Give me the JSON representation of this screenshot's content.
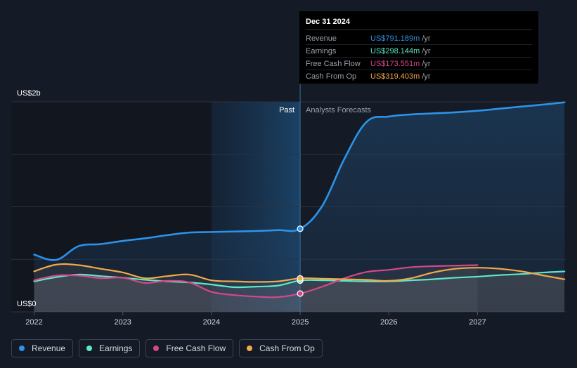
{
  "tooltip": {
    "date": "Dec 31 2024",
    "rows": [
      {
        "label": "Revenue",
        "value": "US$791.189m",
        "unit": "/yr",
        "color": "#2d93e8"
      },
      {
        "label": "Earnings",
        "value": "US$298.144m",
        "unit": "/yr",
        "color": "#5de8c8"
      },
      {
        "label": "Free Cash Flow",
        "value": "US$173.551m",
        "unit": "/yr",
        "color": "#d4488a"
      },
      {
        "label": "Cash From Op",
        "value": "US$319.403m",
        "unit": "/yr",
        "color": "#f2a94a"
      }
    ]
  },
  "legend": [
    {
      "label": "Revenue",
      "color": "#2d93e8"
    },
    {
      "label": "Earnings",
      "color": "#5de8c8"
    },
    {
      "label": "Free Cash Flow",
      "color": "#d4488a"
    },
    {
      "label": "Cash From Op",
      "color": "#f2a94a"
    }
  ],
  "chart_data": {
    "type": "line",
    "y_axis_labels": {
      "top": "US$2b",
      "bottom": "US$0"
    },
    "ylim": [
      0,
      2000
    ],
    "xlim": [
      2022.0,
      2027.98
    ],
    "x_tick_labels": [
      "2022",
      "2023",
      "2024",
      "2025",
      "2026",
      "2027"
    ],
    "x_ticks": [
      2022,
      2023,
      2024,
      2025,
      2026,
      2027
    ],
    "past_label": "Past",
    "forecast_label": "Analysts Forecasts",
    "divider_x": 2025.0,
    "highlight_start_x": 2024.0,
    "grid": true,
    "series": [
      {
        "name": "Revenue",
        "color": "#2d93e8",
        "points": [
          [
            2022.0,
            545
          ],
          [
            2022.25,
            495
          ],
          [
            2022.5,
            625
          ],
          [
            2022.75,
            645
          ],
          [
            2023.0,
            675
          ],
          [
            2023.25,
            700
          ],
          [
            2023.5,
            730
          ],
          [
            2023.75,
            755
          ],
          [
            2024.0,
            760
          ],
          [
            2024.25,
            765
          ],
          [
            2024.5,
            770
          ],
          [
            2024.75,
            778
          ],
          [
            2025.0,
            791
          ],
          [
            2025.25,
            1010
          ],
          [
            2025.5,
            1460
          ],
          [
            2025.75,
            1810
          ],
          [
            2026.0,
            1860
          ],
          [
            2026.25,
            1880
          ],
          [
            2026.5,
            1890
          ],
          [
            2026.75,
            1900
          ],
          [
            2027.0,
            1915
          ],
          [
            2027.25,
            1935
          ],
          [
            2027.5,
            1955
          ],
          [
            2027.75,
            1975
          ],
          [
            2027.98,
            1995
          ]
        ]
      },
      {
        "name": "Earnings",
        "color": "#5de8c8",
        "points": [
          [
            2022.0,
            290
          ],
          [
            2022.25,
            330
          ],
          [
            2022.5,
            355
          ],
          [
            2022.75,
            340
          ],
          [
            2023.0,
            325
          ],
          [
            2023.25,
            305
          ],
          [
            2023.5,
            290
          ],
          [
            2023.75,
            280
          ],
          [
            2024.0,
            260
          ],
          [
            2024.25,
            235
          ],
          [
            2024.5,
            240
          ],
          [
            2024.75,
            250
          ],
          [
            2025.0,
            298
          ],
          [
            2025.25,
            300
          ],
          [
            2025.5,
            295
          ],
          [
            2025.75,
            290
          ],
          [
            2026.0,
            290
          ],
          [
            2026.25,
            300
          ],
          [
            2026.5,
            310
          ],
          [
            2026.75,
            325
          ],
          [
            2027.0,
            335
          ],
          [
            2027.25,
            350
          ],
          [
            2027.5,
            360
          ],
          [
            2027.75,
            375
          ],
          [
            2027.98,
            385
          ]
        ]
      },
      {
        "name": "Free Cash Flow",
        "color": "#d4488a",
        "points": [
          [
            2022.0,
            300
          ],
          [
            2022.25,
            345
          ],
          [
            2022.5,
            345
          ],
          [
            2022.75,
            320
          ],
          [
            2023.0,
            325
          ],
          [
            2023.25,
            275
          ],
          [
            2023.5,
            295
          ],
          [
            2023.75,
            280
          ],
          [
            2024.0,
            190
          ],
          [
            2024.25,
            160
          ],
          [
            2024.5,
            145
          ],
          [
            2024.75,
            140
          ],
          [
            2025.0,
            174
          ],
          [
            2025.25,
            240
          ],
          [
            2025.5,
            320
          ],
          [
            2025.75,
            380
          ],
          [
            2026.0,
            400
          ],
          [
            2026.25,
            425
          ],
          [
            2026.5,
            435
          ],
          [
            2026.75,
            440
          ],
          [
            2027.0,
            445
          ]
        ]
      },
      {
        "name": "Cash From Op",
        "color": "#f2a94a",
        "points": [
          [
            2022.0,
            385
          ],
          [
            2022.25,
            450
          ],
          [
            2022.5,
            445
          ],
          [
            2022.75,
            410
          ],
          [
            2023.0,
            375
          ],
          [
            2023.25,
            320
          ],
          [
            2023.5,
            340
          ],
          [
            2023.75,
            355
          ],
          [
            2024.0,
            300
          ],
          [
            2024.25,
            290
          ],
          [
            2024.5,
            285
          ],
          [
            2024.75,
            290
          ],
          [
            2025.0,
            319
          ],
          [
            2025.25,
            315
          ],
          [
            2025.5,
            310
          ],
          [
            2025.75,
            305
          ],
          [
            2026.0,
            295
          ],
          [
            2026.25,
            320
          ],
          [
            2026.5,
            375
          ],
          [
            2026.75,
            410
          ],
          [
            2027.0,
            420
          ],
          [
            2027.25,
            410
          ],
          [
            2027.5,
            385
          ],
          [
            2027.75,
            345
          ],
          [
            2027.98,
            310
          ]
        ]
      }
    ],
    "highlight_points": [
      [
        2025.0,
        791
      ],
      [
        2025.0,
        298
      ],
      [
        2025.0,
        174
      ],
      [
        2025.0,
        319
      ]
    ]
  }
}
